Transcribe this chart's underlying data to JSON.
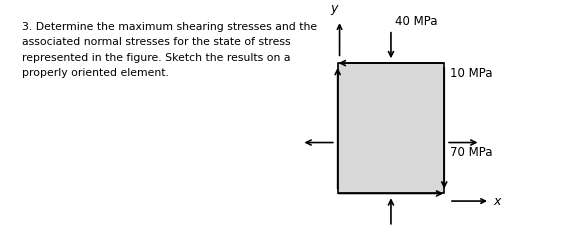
{
  "text_block": [
    "3. Determine the maximum shearing stresses and the",
    "associated normal stresses for the state of stress",
    "represented in the figure. Sketch the results on a",
    "properly oriented element."
  ],
  "text_fontsize": 7.8,
  "box_color": "#d8d8d8",
  "box_edge_color": "#000000",
  "label_40": "40 MPa",
  "label_10": "10 MPa",
  "label_70": "70 MPa",
  "label_x": "x",
  "label_y": "y",
  "bg_color": "#ffffff"
}
